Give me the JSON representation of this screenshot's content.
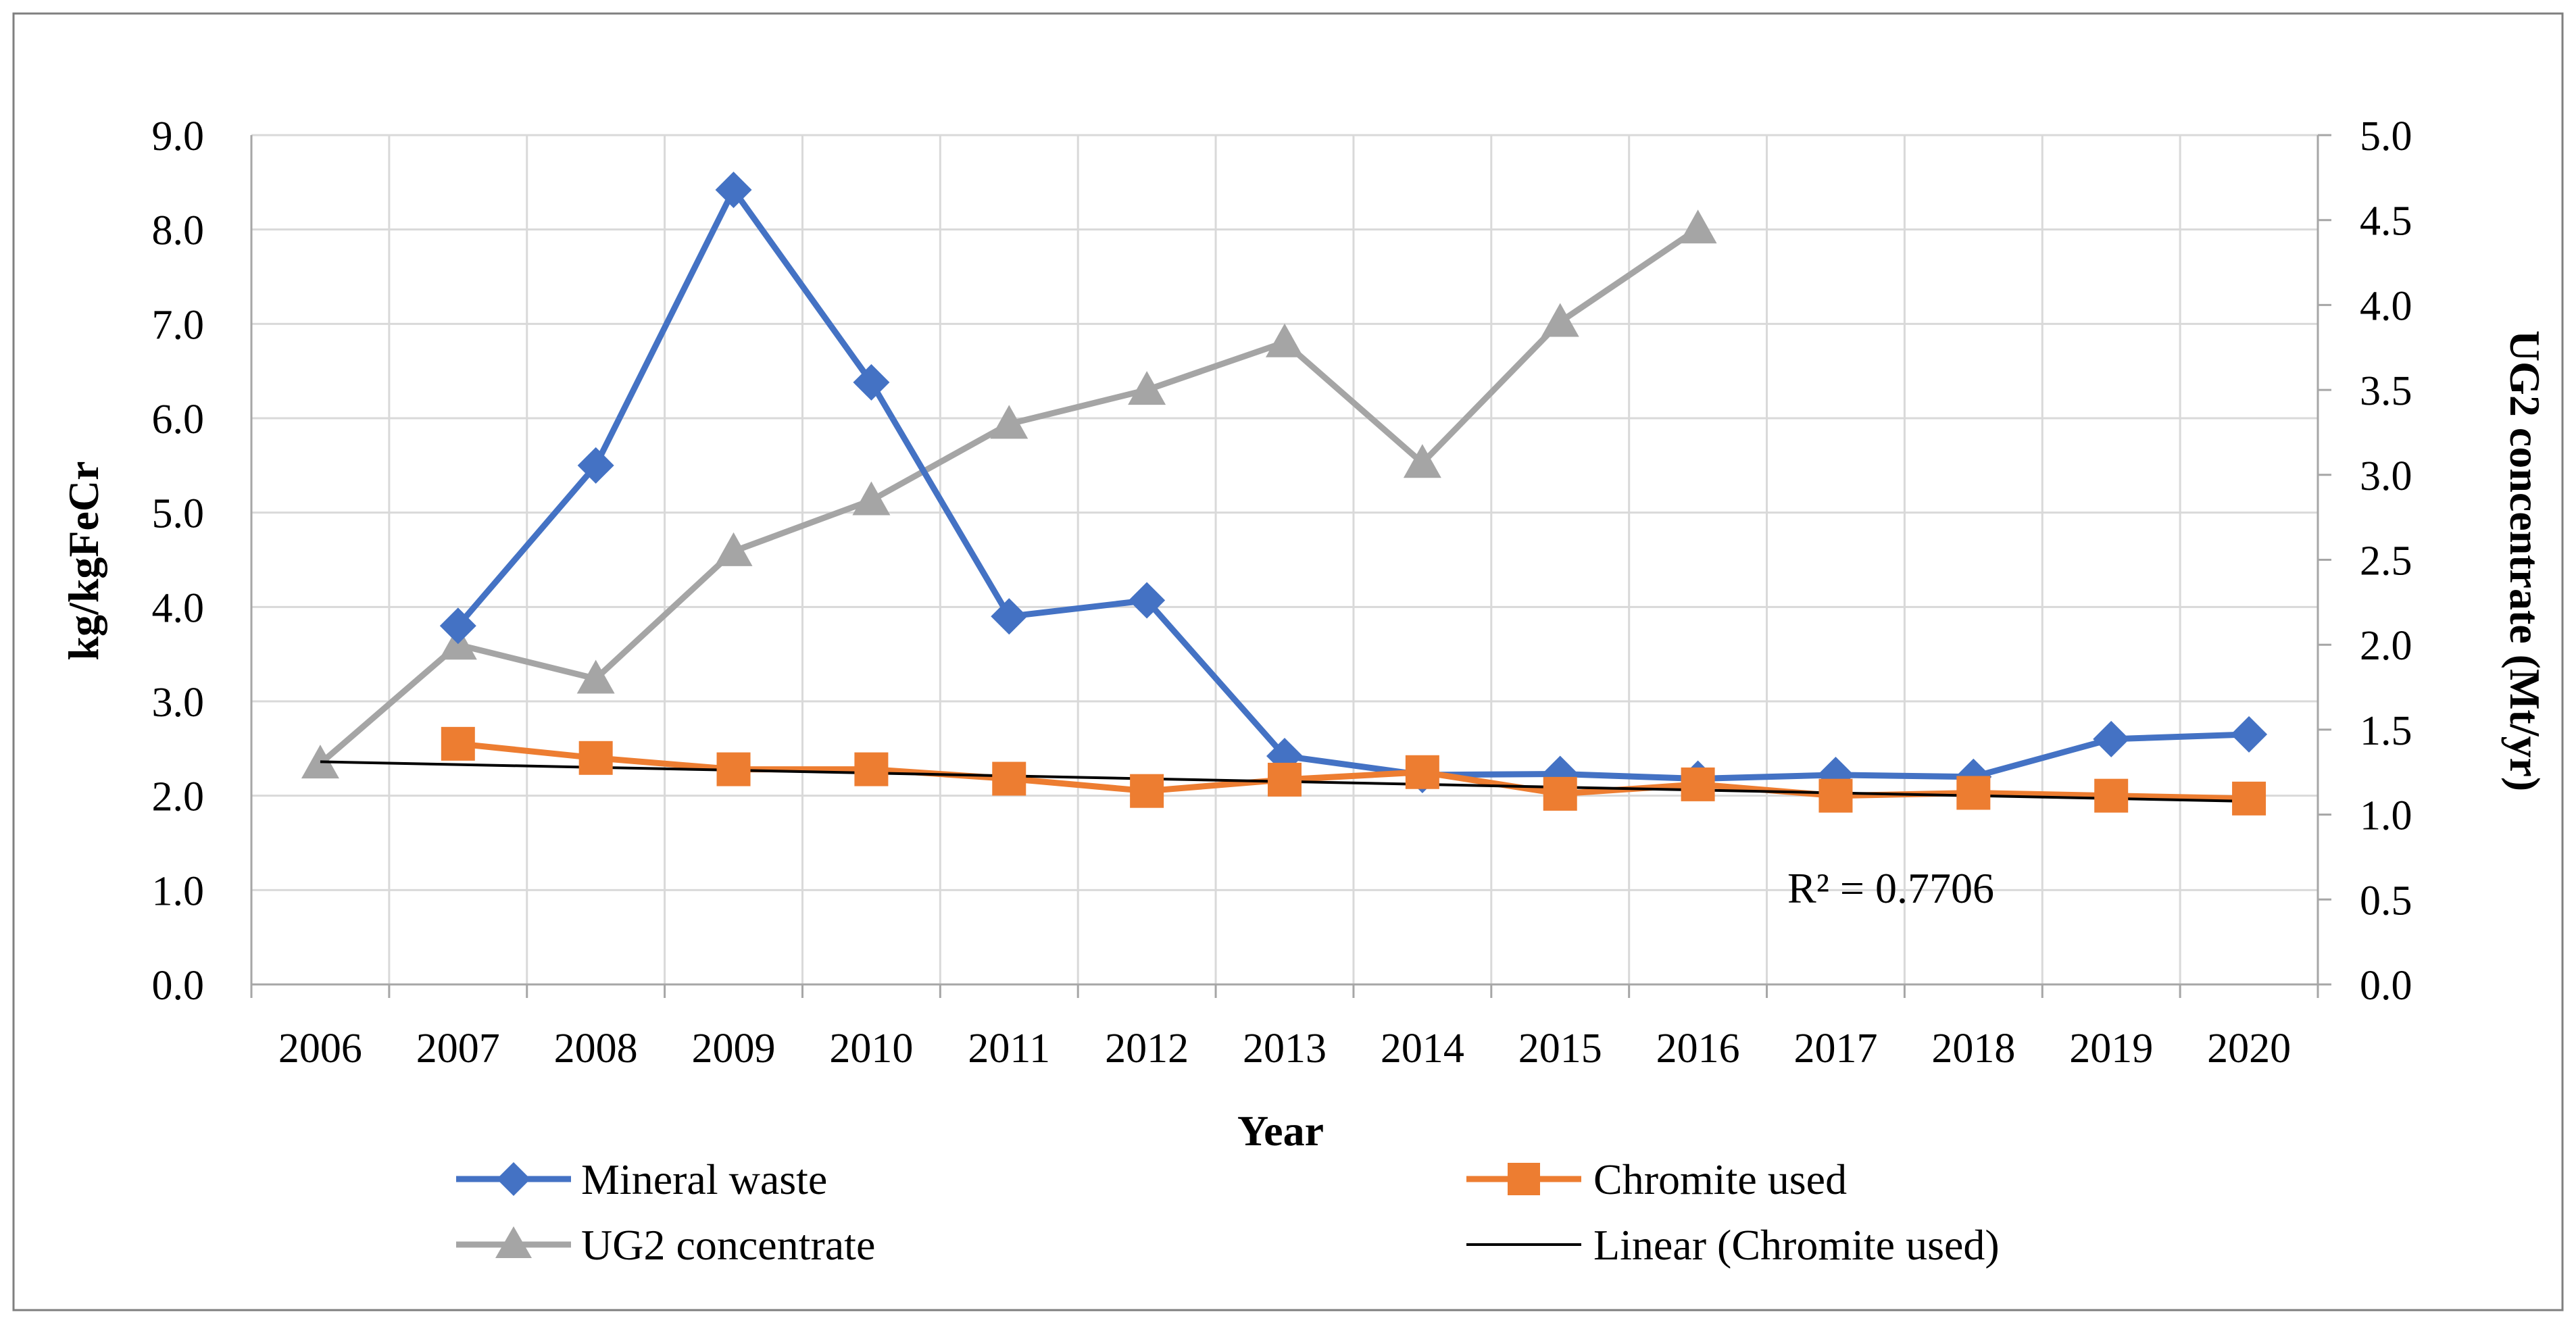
{
  "chart_data": {
    "type": "line",
    "xlabel": "Year",
    "ylabel": "kg/kgFeCr",
    "y2label": "UG2 concentrate (Mt/yr)",
    "categories": [
      "2006",
      "2007",
      "2008",
      "2009",
      "2010",
      "2011",
      "2012",
      "2013",
      "2014",
      "2015",
      "2016",
      "2017",
      "2018",
      "2019",
      "2020"
    ],
    "ylim": [
      0,
      9
    ],
    "yticks": [
      "0.0",
      "1.0",
      "2.0",
      "3.0",
      "4.0",
      "5.0",
      "6.0",
      "7.0",
      "8.0",
      "9.0"
    ],
    "y2lim": [
      0,
      5
    ],
    "y2ticks": [
      "0.0",
      "0.5",
      "1.0",
      "1.5",
      "2.0",
      "2.5",
      "3.0",
      "3.5",
      "4.0",
      "4.5",
      "5.0"
    ],
    "grid": true,
    "legend_position": "bottom",
    "series": [
      {
        "name": "Mineral waste",
        "axis": "left",
        "marker": "diamond",
        "color": "#4472C4",
        "values": [
          null,
          3.8,
          5.5,
          8.42,
          6.38,
          3.9,
          4.07,
          2.42,
          2.22,
          2.23,
          2.18,
          2.22,
          2.2,
          2.6,
          2.65
        ]
      },
      {
        "name": "Chromite used",
        "axis": "left",
        "marker": "square",
        "color": "#ED7D31",
        "values": [
          null,
          2.55,
          2.4,
          2.28,
          2.28,
          2.18,
          2.05,
          2.17,
          2.25,
          2.02,
          2.12,
          2.0,
          2.03,
          2.0,
          1.97
        ]
      },
      {
        "name": "UG2 concentrate",
        "axis": "right",
        "marker": "triangle",
        "color": "#A5A5A5",
        "values": [
          1.3,
          2.0,
          1.8,
          2.55,
          2.85,
          3.3,
          3.5,
          3.78,
          3.07,
          3.9,
          4.45,
          null,
          null,
          null,
          null
        ]
      }
    ],
    "trendline": {
      "name": "Linear (Chromite used)",
      "of_series": "Chromite used",
      "color": "#000000",
      "start": 2.36,
      "end": 1.94,
      "r2_label": "R² = 0.7706"
    }
  }
}
